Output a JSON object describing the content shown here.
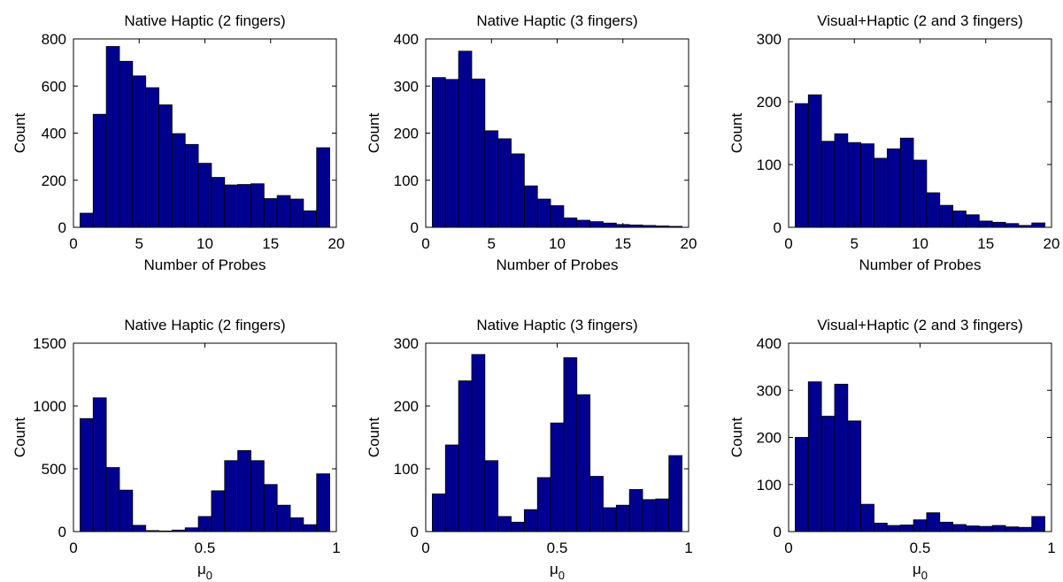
{
  "figure": {
    "colors": {
      "bar_fill": "#00008f",
      "bar_edge": "#000000",
      "axes": "#000000",
      "background": "#ffffff"
    }
  },
  "chart_data": [
    {
      "type": "bar",
      "title": "Native Haptic (2 fingers)",
      "xlabel": "Number of Probes",
      "ylabel": "Count",
      "xlim": [
        0,
        20
      ],
      "ylim": [
        0,
        800
      ],
      "xticks": [
        0,
        5,
        10,
        15,
        20
      ],
      "xtick_labels": [
        "0",
        "5",
        "10",
        "15",
        "20"
      ],
      "yticks": [
        0,
        200,
        400,
        600,
        800
      ],
      "ytick_labels": [
        "0",
        "200",
        "400",
        "600",
        "800"
      ],
      "bin_width": 1,
      "x": [
        1,
        2,
        3,
        4,
        5,
        6,
        7,
        8,
        9,
        10,
        11,
        12,
        13,
        14,
        15,
        16,
        17,
        18,
        19
      ],
      "values": [
        60,
        480,
        768,
        705,
        643,
        593,
        520,
        398,
        352,
        272,
        212,
        180,
        182,
        185,
        122,
        135,
        120,
        70,
        338
      ],
      "grid": false,
      "legend": "none"
    },
    {
      "type": "bar",
      "title": "Native Haptic (3 fingers)",
      "xlabel": "Number of Probes",
      "ylabel": "Count",
      "xlim": [
        0,
        20
      ],
      "ylim": [
        0,
        400
      ],
      "xticks": [
        0,
        5,
        10,
        15,
        20
      ],
      "xtick_labels": [
        "0",
        "5",
        "10",
        "15",
        "20"
      ],
      "yticks": [
        0,
        100,
        200,
        300,
        400
      ],
      "ytick_labels": [
        "0",
        "100",
        "200",
        "300",
        "400"
      ],
      "bin_width": 1,
      "x": [
        1,
        2,
        3,
        4,
        5,
        6,
        7,
        8,
        9,
        10,
        11,
        12,
        13,
        14,
        15,
        16,
        17,
        18,
        19
      ],
      "values": [
        318,
        314,
        374,
        315,
        205,
        188,
        156,
        88,
        60,
        46,
        20,
        15,
        12,
        9,
        6,
        5,
        4,
        3,
        2
      ],
      "grid": false,
      "legend": "none"
    },
    {
      "type": "bar",
      "title": "Visual+Haptic (2 and 3 fingers)",
      "xlabel": "Number of Probes",
      "ylabel": "Count",
      "xlim": [
        0,
        20
      ],
      "ylim": [
        0,
        300
      ],
      "xticks": [
        0,
        5,
        10,
        15,
        20
      ],
      "xtick_labels": [
        "0",
        "5",
        "10",
        "15",
        "20"
      ],
      "yticks": [
        0,
        100,
        200,
        300
      ],
      "ytick_labels": [
        "0",
        "100",
        "200",
        "300"
      ],
      "bin_width": 1,
      "x": [
        1,
        2,
        3,
        4,
        5,
        6,
        7,
        8,
        9,
        10,
        11,
        12,
        13,
        14,
        15,
        16,
        17,
        18,
        19
      ],
      "values": [
        197,
        211,
        137,
        149,
        135,
        133,
        110,
        125,
        142,
        107,
        55,
        35,
        26,
        20,
        10,
        8,
        6,
        3,
        7
      ],
      "grid": false,
      "legend": "none"
    },
    {
      "type": "bar",
      "title": "Native Haptic (2 fingers)",
      "xlabel": "μ",
      "xlabel_subscript": "0",
      "ylabel": "Count",
      "xlim": [
        0,
        1
      ],
      "ylim": [
        0,
        1500
      ],
      "xticks": [
        0,
        0.5,
        1
      ],
      "xtick_labels": [
        "0",
        "0.5",
        "1"
      ],
      "yticks": [
        0,
        500,
        1000,
        1500
      ],
      "ytick_labels": [
        "0",
        "500",
        "1000",
        "1500"
      ],
      "bin_width": 0.05,
      "x": [
        0.05,
        0.1,
        0.15,
        0.2,
        0.25,
        0.3,
        0.35,
        0.4,
        0.45,
        0.5,
        0.55,
        0.6,
        0.65,
        0.7,
        0.75,
        0.8,
        0.85,
        0.9,
        0.95
      ],
      "values": [
        900,
        1065,
        510,
        330,
        50,
        8,
        5,
        12,
        30,
        120,
        325,
        565,
        645,
        565,
        375,
        210,
        110,
        55,
        460
      ],
      "grid": false,
      "legend": "none"
    },
    {
      "type": "bar",
      "title": "Native Haptic (3 fingers)",
      "xlabel": "μ",
      "xlabel_subscript": "0",
      "ylabel": "Count",
      "xlim": [
        0,
        1
      ],
      "ylim": [
        0,
        300
      ],
      "xticks": [
        0,
        0.5,
        1
      ],
      "xtick_labels": [
        "0",
        "0.5",
        "1"
      ],
      "yticks": [
        0,
        100,
        200,
        300
      ],
      "ytick_labels": [
        "0",
        "100",
        "200",
        "300"
      ],
      "bin_width": 0.05,
      "x": [
        0.05,
        0.1,
        0.15,
        0.2,
        0.25,
        0.3,
        0.35,
        0.4,
        0.45,
        0.5,
        0.55,
        0.6,
        0.65,
        0.7,
        0.75,
        0.8,
        0.85,
        0.9,
        0.95
      ],
      "values": [
        60,
        138,
        240,
        282,
        113,
        24,
        15,
        35,
        86,
        173,
        277,
        218,
        88,
        38,
        42,
        67,
        51,
        52,
        121
      ],
      "grid": false,
      "legend": "none"
    },
    {
      "type": "bar",
      "title": "Visual+Haptic (2 and 3 fingers)",
      "xlabel": "μ",
      "xlabel_subscript": "0",
      "ylabel": "Count",
      "xlim": [
        0,
        1
      ],
      "ylim": [
        0,
        400
      ],
      "xticks": [
        0,
        0.5,
        1
      ],
      "xtick_labels": [
        "0",
        "0.5",
        "1"
      ],
      "yticks": [
        0,
        100,
        200,
        300,
        400
      ],
      "ytick_labels": [
        "0",
        "100",
        "200",
        "300",
        "400"
      ],
      "bin_width": 0.05,
      "x": [
        0.05,
        0.1,
        0.15,
        0.2,
        0.25,
        0.3,
        0.35,
        0.4,
        0.45,
        0.5,
        0.55,
        0.6,
        0.65,
        0.7,
        0.75,
        0.8,
        0.85,
        0.9,
        0.95
      ],
      "values": [
        200,
        318,
        245,
        313,
        235,
        58,
        18,
        13,
        14,
        25,
        40,
        20,
        15,
        12,
        11,
        13,
        10,
        9,
        32
      ],
      "grid": false,
      "legend": "none"
    }
  ]
}
